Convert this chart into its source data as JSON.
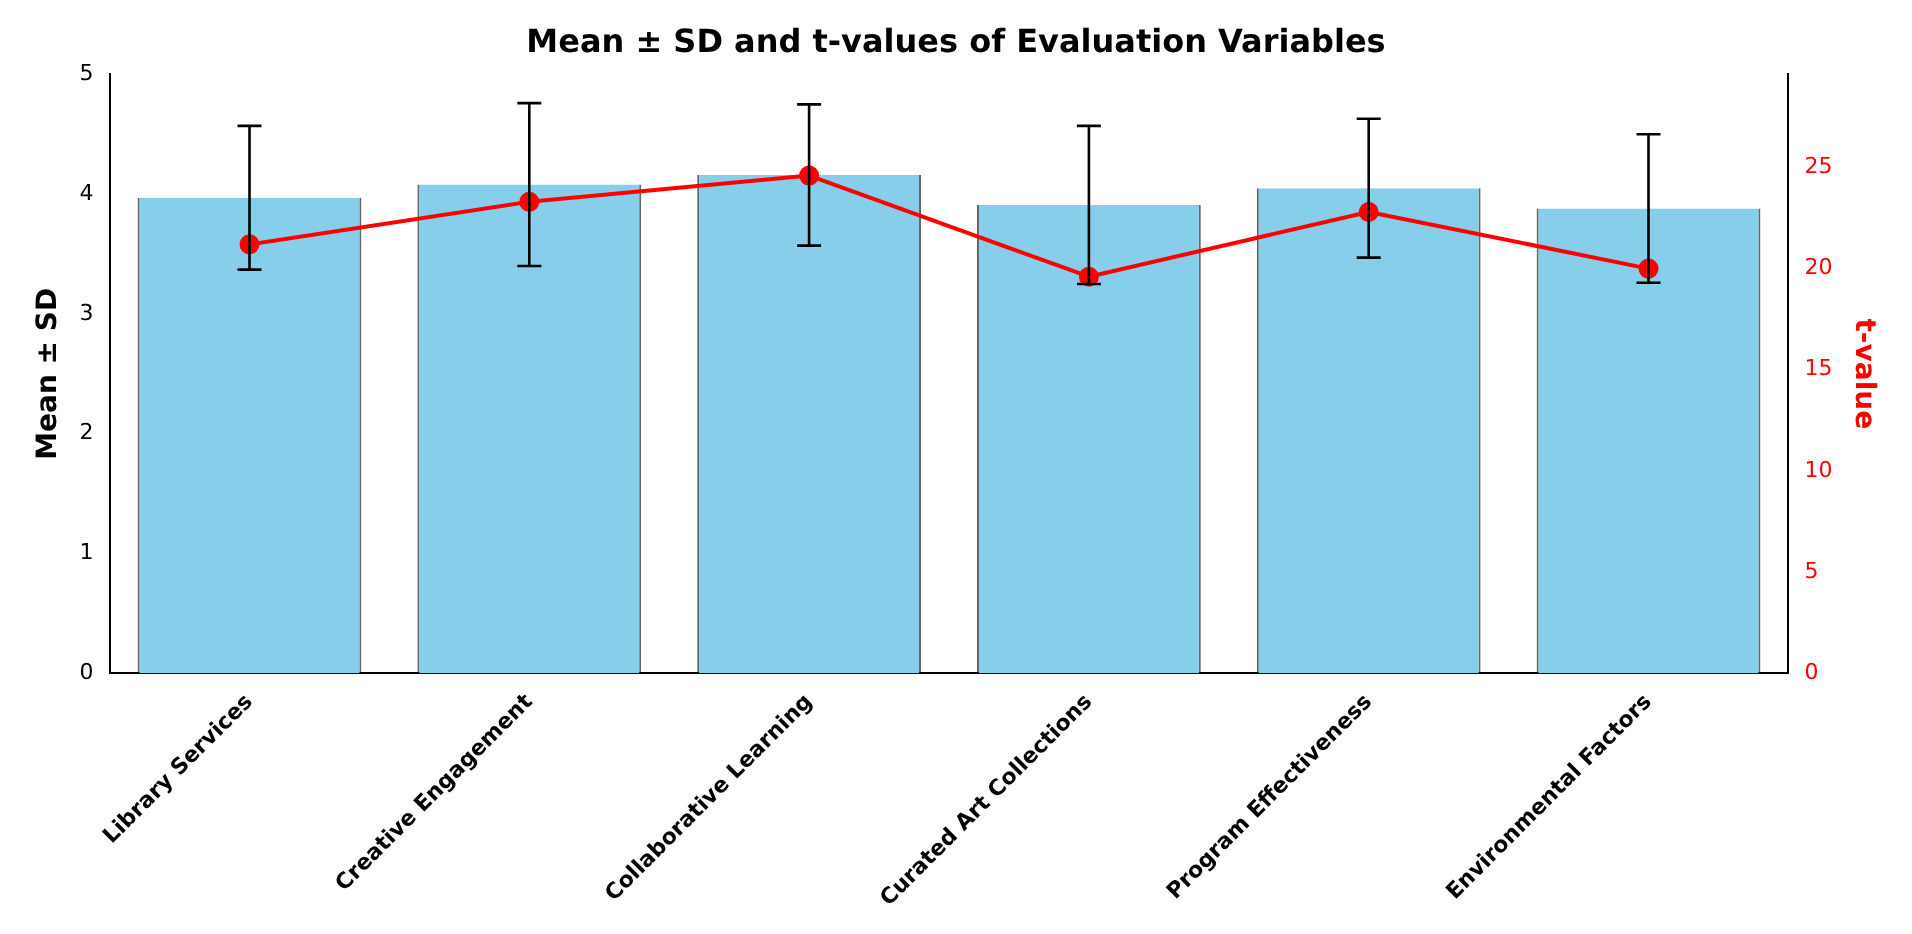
{
  "chart_data": {
    "type": "bar",
    "title": "Mean ± SD and t-values of Evaluation Variables",
    "ylabel": "Mean ± SD",
    "y2label": "t-value",
    "categories": [
      "Library Services",
      "Creative Engagement",
      "Collaborative Learning",
      "Curated Art Collections",
      "Program Effectiveness",
      "Environmental Factors"
    ],
    "series": [
      {
        "color": "#87ceeb",
        "values": [
          3.97,
          4.08,
          4.16,
          3.91,
          4.05,
          3.88
        ],
        "errors": [
          0.6,
          0.68,
          0.59,
          0.66,
          0.58,
          0.62
        ]
      },
      {
        "type": "line",
        "axis": "y2",
        "color": "#ff0000",
        "marker": "circle",
        "values": [
          21.2,
          23.3,
          24.6,
          19.6,
          22.8,
          20.0
        ]
      }
    ],
    "ylim": [
      0,
      5
    ],
    "yticks": [
      0,
      1,
      2,
      3,
      4,
      5
    ],
    "y2lim": [
      0,
      29.6
    ],
    "y2ticks": [
      0,
      5,
      10,
      15,
      20,
      25
    ],
    "grid": false,
    "legend": false
  }
}
